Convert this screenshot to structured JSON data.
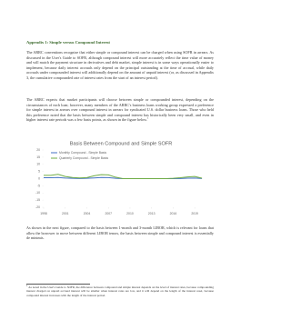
{
  "heading": "Appendix 1: Simple versus Compound Interest",
  "paragraphs": [
    "The ARRC conventions recognize that either simple or compound interest can be charged when using SOFR in arrears. As discussed in the User's Guide to SOFR, although compound interest will more accurately reflect the time value of money and will match the payment structure in derivatives and debt market, simple interest is in some ways operationally easier to implement, because daily interest accruals only depend on the principal outstanding at the time of accrual, while daily accruals under compounded interest will additionally depend on the amount of unpaid interest (or, as discussed in Appendix 3, the cumulative compounded rate of interest rates from the start of an interest period).",
    "The ARRC expects that market participants will choose between simple or compounded interest, depending on the circumstances of each loan; however, many members of the ARRC's business loans working group expressed a preference for simple interest in arrears over compound interest in arrears for syndicated U.S. dollar business loans. Those who held this preference noted that the basis between simple and compound interest has historically been very small, and even in higher interest rate periods was a few basis points, as shown in the figure below.",
    "As shown in the next figure, compared to the basis between 1-month and 3-month LIBOR, which is relevant for loans that allow the borrower to move between different LIBOR tenors, the basis between simple and compound interest is essentially de minimis."
  ],
  "footnote_ref": "1",
  "footnote": "As noted in the User's Guide to SOFR, the difference between compound and simple interest depends on the level of interest rates, because compounding interest charged on unpaid accrued interest will be smaller when interest rates are low, and it will depend on the length of the interest reset, because compound interest increases with the length of the interest period.",
  "chart_data": {
    "type": "line",
    "title": "Basis Between Compound and Simple SOFR",
    "x": [
      1998,
      1999,
      2000,
      2001,
      2002,
      2003,
      2004,
      2005,
      2006,
      2007,
      2008,
      2009,
      2010,
      2011,
      2012,
      2013,
      2014,
      2015,
      2016,
      2017,
      2018,
      2019,
      2020
    ],
    "series": [
      {
        "name": "Monthly Compound - Simple Basis",
        "color": "#4472c4",
        "values": [
          0.6,
          0.6,
          0.8,
          0.4,
          0.2,
          0.1,
          0.2,
          0.5,
          0.8,
          0.7,
          0.2,
          0,
          0,
          0,
          0,
          0,
          0,
          0,
          0,
          0.1,
          0.3,
          0.4,
          0.1
        ]
      },
      {
        "name": "Quarterly Compound - Simple Basis",
        "color": "#70ad47",
        "values": [
          2.3,
          2.3,
          3,
          1.5,
          0.8,
          0.5,
          0.7,
          2,
          2.8,
          2.6,
          1,
          0,
          0,
          0,
          0,
          0,
          0,
          0,
          0.2,
          0.6,
          1.2,
          1.5,
          0.3
        ]
      }
    ],
    "xlim": [
      1998,
      2021
    ],
    "xticks": [
      1998,
      2001,
      2004,
      2007,
      2010,
      2013,
      2016,
      2019
    ],
    "ylim": [
      -20,
      20
    ],
    "yticks": [
      20,
      15,
      10,
      5,
      0,
      -5,
      -10,
      -15,
      -20
    ],
    "legend": "top-left",
    "grid": false
  }
}
